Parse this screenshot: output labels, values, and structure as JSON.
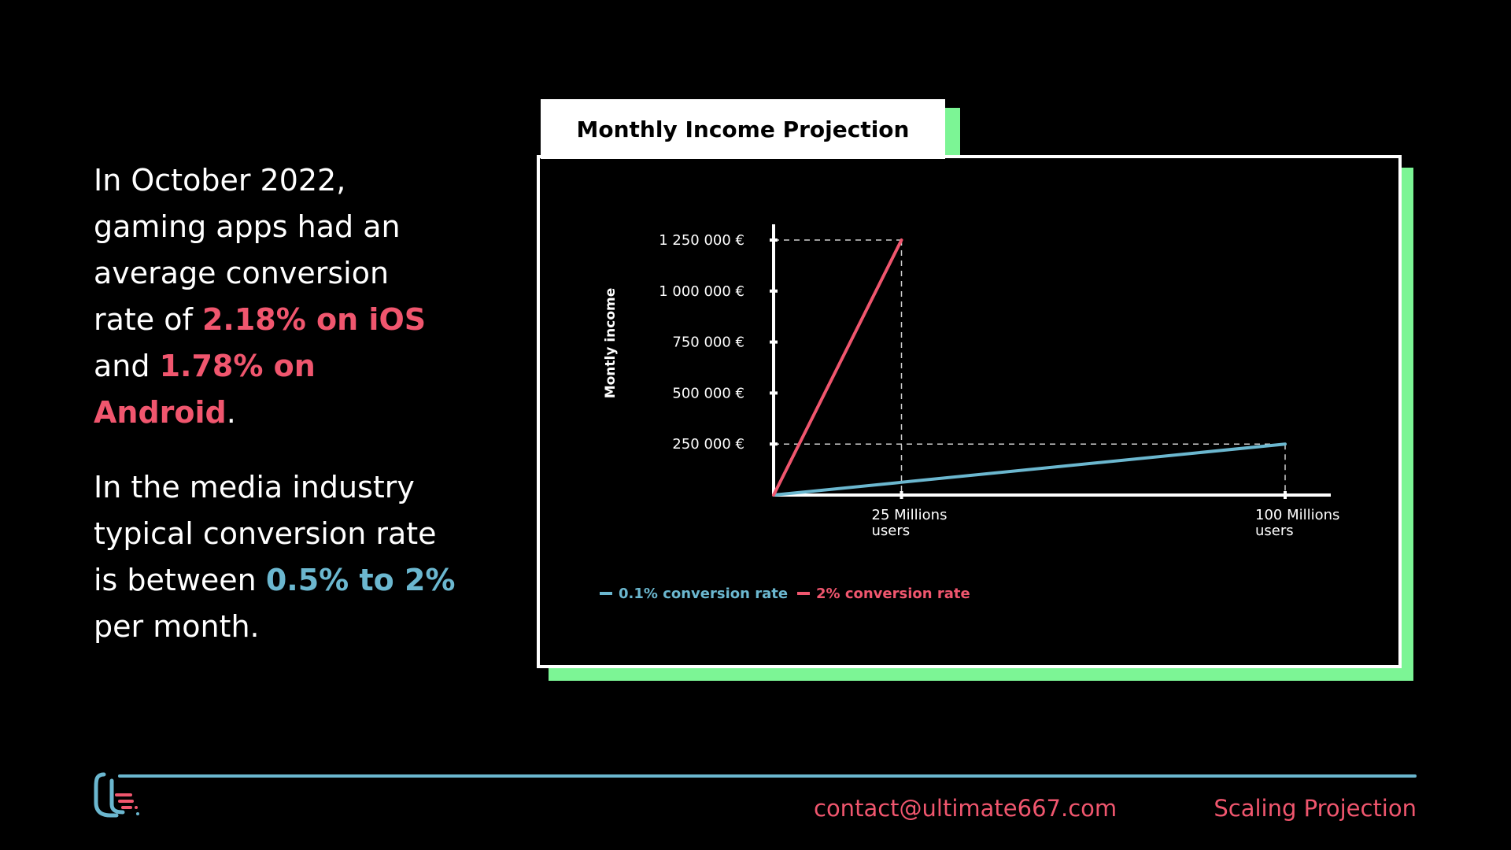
{
  "intro": {
    "p1_part1": "In October 2022, gaming apps had an average conversion rate of ",
    "p1_ios": "2.18% on iOS",
    "p1_and": " and ",
    "p1_android": "1.78% on Android",
    "p1_end": ".",
    "p2_part1": "In the media industry typical conversion rate is between ",
    "p2_range": "0.5% to 2%",
    "p2_end": " per month."
  },
  "chart_data": {
    "type": "line",
    "title": "Monthly Income Projection",
    "ylabel": "Montly income",
    "xlabel": "",
    "ylim": [
      0,
      1250000
    ],
    "xlim": [
      0,
      100
    ],
    "y_ticks": [
      {
        "value": 250000,
        "label": "250 000 €"
      },
      {
        "value": 500000,
        "label": "500 000 €"
      },
      {
        "value": 750000,
        "label": "750 000 €"
      },
      {
        "value": 1000000,
        "label": "1 000 000 €"
      },
      {
        "value": 1250000,
        "label": "1 250 000 €"
      }
    ],
    "x_ticks": [
      {
        "value": 25,
        "label": [
          "25 Millions",
          "users"
        ]
      },
      {
        "value": 100,
        "label": [
          "100 Millions",
          "users"
        ]
      }
    ],
    "series": [
      {
        "name": "0.1% conversion rate",
        "color": "#6bb7cf",
        "x": [
          0,
          100
        ],
        "y": [
          0,
          250000
        ]
      },
      {
        "name": "2% conversion rate",
        "color": "#f0566e",
        "x": [
          0,
          25
        ],
        "y": [
          0,
          1250000
        ]
      }
    ],
    "legend_position": "bottom-left",
    "grid": false
  },
  "footer": {
    "email": "contact@ultimate667.com",
    "section": "Scaling Projection"
  },
  "colors": {
    "accent_pink": "#f0566e",
    "accent_blue": "#6bb7cf",
    "accent_green": "#7cf595"
  }
}
